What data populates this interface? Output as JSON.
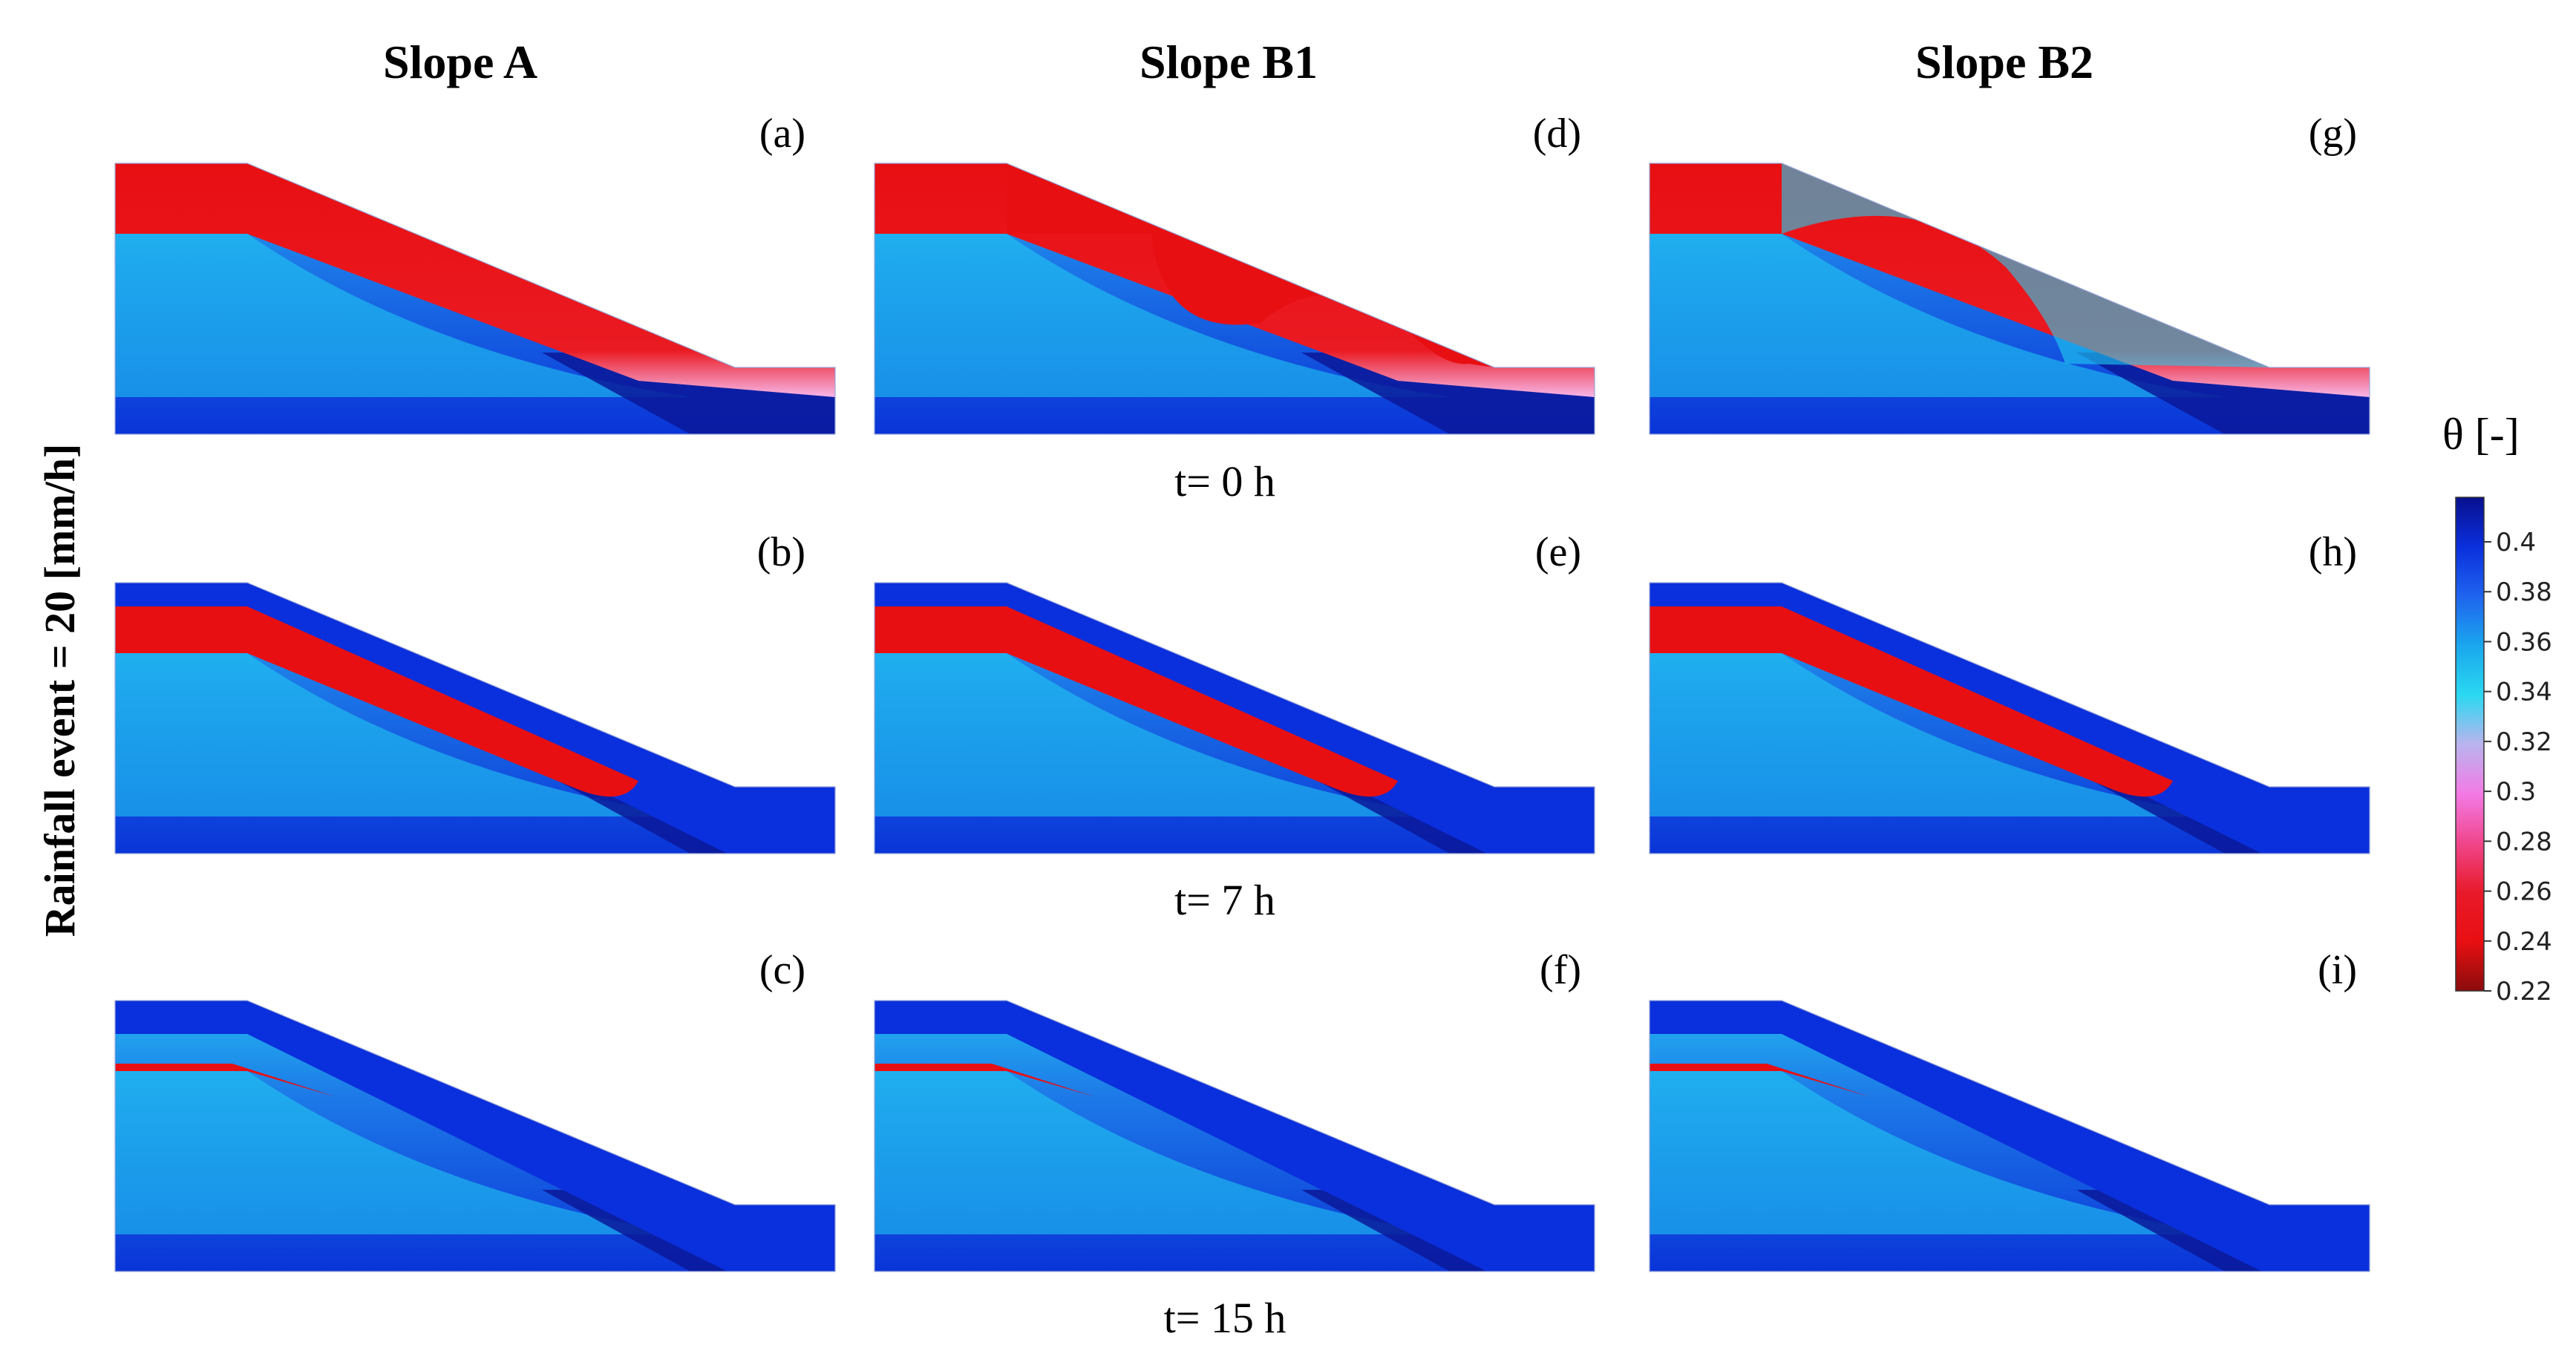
{
  "figure": {
    "rainfall_label": "Rainfall event = 20 [mm/h]",
    "columns": [
      {
        "title": "Slope A"
      },
      {
        "title": "Slope B1"
      },
      {
        "title": "Slope B2"
      }
    ],
    "time_labels": [
      "t= 0 h",
      "t= 7 h",
      "t= 15 h"
    ],
    "panels": [
      {
        "label": "(a)",
        "slope": "A",
        "time": "t= 0 h"
      },
      {
        "label": "(b)",
        "slope": "A",
        "time": "t= 7 h"
      },
      {
        "label": "(c)",
        "slope": "A",
        "time": "t= 15 h"
      },
      {
        "label": "(d)",
        "slope": "B1",
        "time": "t= 0 h"
      },
      {
        "label": "(e)",
        "slope": "B1",
        "time": "t= 7 h"
      },
      {
        "label": "(f)",
        "slope": "B1",
        "time": "t= 15 h"
      },
      {
        "label": "(g)",
        "slope": "B2",
        "time": "t= 0 h"
      },
      {
        "label": "(h)",
        "slope": "B2",
        "time": "t= 7 h"
      },
      {
        "label": "(i)",
        "slope": "B2",
        "time": "t= 15 h"
      }
    ],
    "colorbar": {
      "title": "θ  [-]",
      "ticks": [
        "0.4",
        "0.38",
        "0.36",
        "0.34",
        "0.32",
        "0.3",
        "0.28",
        "0.26",
        "0.24",
        "0.22"
      ],
      "stops": [
        "#08108e",
        "#0a2fdc",
        "#1f63ee",
        "#1aa6ee",
        "#2ad8f0",
        "#b9b4ee",
        "#f37be6",
        "#f0468c",
        "#e81a2a",
        "#e80f12",
        "#8a0c0c"
      ]
    },
    "colors": {
      "dry": "#e80f12",
      "wet": "#0a2fdc",
      "saturated": "#0a1799",
      "cyan": "#20d0f2",
      "mid": "#1e5fe6"
    }
  }
}
